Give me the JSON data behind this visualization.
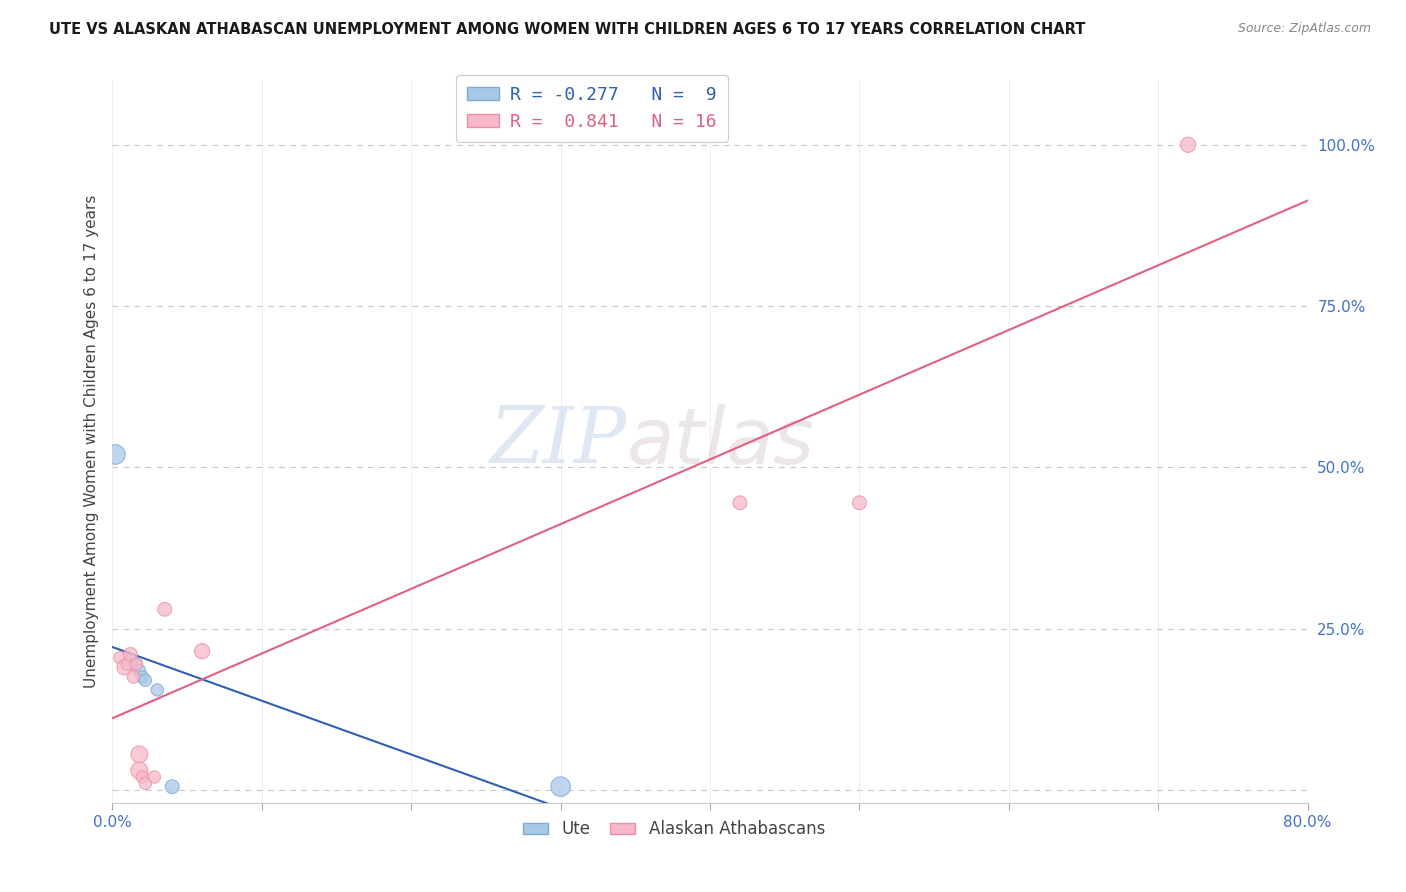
{
  "title": "UTE VS ALASKAN ATHABASCAN UNEMPLOYMENT AMONG WOMEN WITH CHILDREN AGES 6 TO 17 YEARS CORRELATION CHART",
  "source": "Source: ZipAtlas.com",
  "ylabel": "Unemployment Among Women with Children Ages 6 to 17 years",
  "xlim": [
    0.0,
    0.8
  ],
  "ylim": [
    -0.02,
    1.1
  ],
  "xticks": [
    0.0,
    0.1,
    0.2,
    0.3,
    0.4,
    0.5,
    0.6,
    0.7,
    0.8
  ],
  "xticklabels": [
    "0.0%",
    "",
    "",
    "",
    "",
    "",
    "",
    "",
    "80.0%"
  ],
  "ytick_positions": [
    0.0,
    0.25,
    0.5,
    0.75,
    1.0
  ],
  "ytick_labels": [
    "",
    "25.0%",
    "50.0%",
    "75.0%",
    "100.0%"
  ],
  "grid_color": "#c8c8c8",
  "ute_color": "#a8c8e8",
  "ute_edge_color": "#80aad0",
  "alaskan_color": "#f8b8c8",
  "alaskan_edge_color": "#e890a8",
  "ute_line_color": "#3060b0",
  "alaskan_line_color": "#e06080",
  "legend_ute_color": "#a8c8e8",
  "legend_alaskan_color": "#f8b8c8",
  "ute_R": -0.277,
  "ute_N": 9,
  "alaskan_R": 0.841,
  "alaskan_N": 16,
  "watermark_zip": "ZIP",
  "watermark_atlas": "atlas",
  "ute_points": [
    [
      0.002,
      0.52
    ],
    [
      0.012,
      0.2
    ],
    [
      0.016,
      0.195
    ],
    [
      0.018,
      0.185
    ],
    [
      0.02,
      0.175
    ],
    [
      0.022,
      0.17
    ],
    [
      0.03,
      0.155
    ],
    [
      0.04,
      0.005
    ],
    [
      0.3,
      0.005
    ]
  ],
  "alaskan_points": [
    [
      0.005,
      0.205
    ],
    [
      0.008,
      0.19
    ],
    [
      0.01,
      0.195
    ],
    [
      0.012,
      0.21
    ],
    [
      0.014,
      0.175
    ],
    [
      0.016,
      0.195
    ],
    [
      0.018,
      0.055
    ],
    [
      0.018,
      0.03
    ],
    [
      0.02,
      0.02
    ],
    [
      0.022,
      0.01
    ],
    [
      0.028,
      0.02
    ],
    [
      0.035,
      0.28
    ],
    [
      0.06,
      0.215
    ],
    [
      0.42,
      0.445
    ],
    [
      0.5,
      0.445
    ],
    [
      0.72,
      1.0
    ]
  ],
  "ute_sizes": [
    200,
    100,
    80,
    80,
    80,
    80,
    80,
    100,
    200
  ],
  "alaskan_sizes": [
    80,
    120,
    80,
    100,
    80,
    80,
    150,
    150,
    80,
    80,
    80,
    100,
    120,
    100,
    100,
    120
  ]
}
